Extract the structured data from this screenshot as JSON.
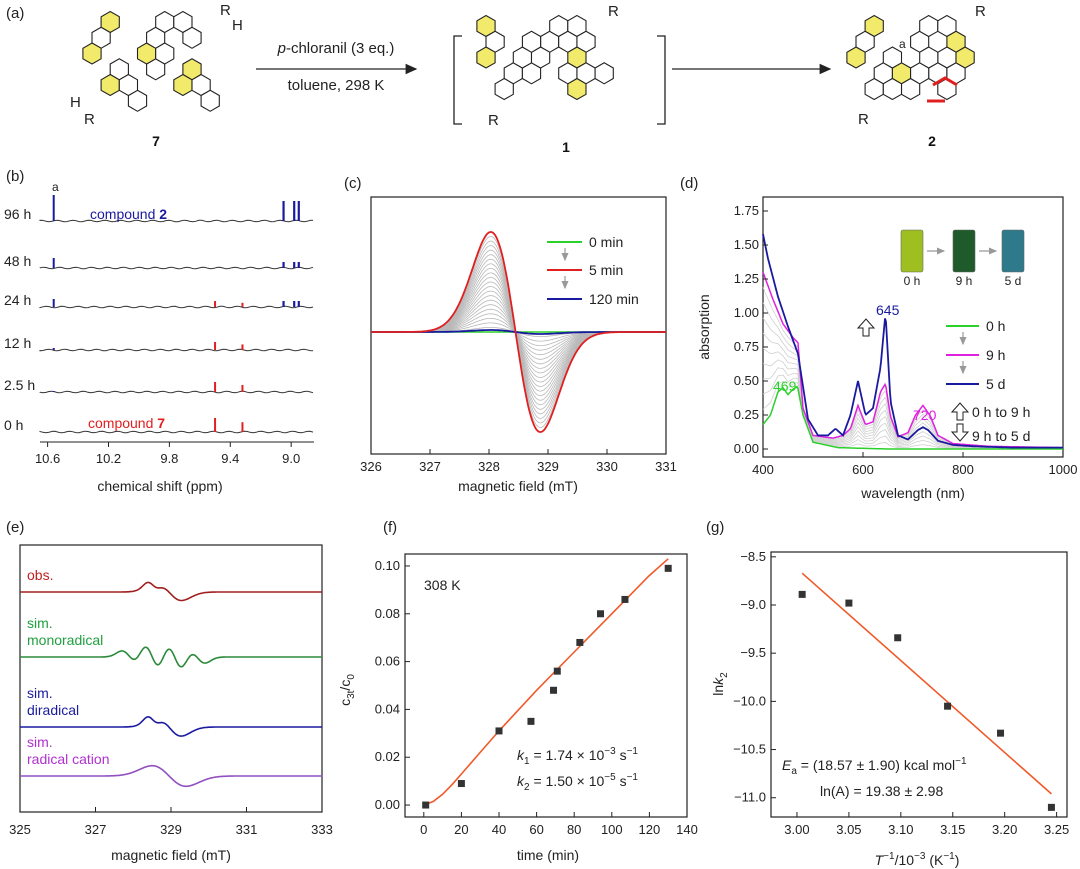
{
  "panel_labels": [
    "(a)",
    "(b)",
    "(c)",
    "(d)",
    "(e)",
    "(f)",
    "(g)"
  ],
  "colors": {
    "green": "#2bd12b",
    "red": "#e02020",
    "blue": "#1a1aa0",
    "magenta": "#e020e0",
    "orange": "#f05a28",
    "yellow": "#f2ea6a",
    "dark": "#333333",
    "gray": "#b8b8b8"
  },
  "scheme": {
    "reagent": "p-chloranil (3 eq.)",
    "reagent_italic": "p",
    "reagent_rest": "-chloranil (3 eq.)",
    "conditions": "toluene, 298 K",
    "compound_7": "7",
    "compound_1": "1",
    "compound_2": "2",
    "r": "R",
    "h": "H",
    "site_a": "a"
  },
  "panel_b": {
    "times": [
      "96 h",
      "48 h",
      "24 h",
      "12 h",
      "2.5 h",
      "0 h"
    ],
    "compound_2_text": "compound ",
    "compound_2_num": "2",
    "compound_7_text": "compound ",
    "compound_7_num": "7",
    "peak_label": "a",
    "xlabel": "chemical shift (ppm)",
    "xticks": [
      "10.6",
      "10.2",
      "9.8",
      "9.4",
      "9.0"
    ]
  },
  "chart_data": [
    {
      "type": "line",
      "panel": "c",
      "title": "",
      "xlabel": "magnetic field (mT)",
      "ylabel": "",
      "xlim": [
        326,
        331
      ],
      "xticks": [
        "326",
        "327",
        "328",
        "329",
        "330",
        "331"
      ],
      "legend": [
        "0 min",
        "5 min",
        "120 min"
      ],
      "series": [
        {
          "name": "5 min",
          "peak_x": 328.0,
          "trough_x": 328.9,
          "amplitude": 1.0
        },
        {
          "name": "0 min",
          "amplitude": 0.0
        },
        {
          "name": "120 min",
          "amplitude": 0.02
        }
      ]
    },
    {
      "type": "line",
      "panel": "d",
      "xlabel": "wavelength (nm)",
      "ylabel": "absorption",
      "xlim": [
        400,
        1000
      ],
      "ylim": [
        0,
        1.75
      ],
      "xticks": [
        "400",
        "600",
        "800",
        "1000"
      ],
      "yticks": [
        "0.00",
        "0.25",
        "0.50",
        "0.75",
        "1.00",
        "1.25",
        "1.50",
        "1.75"
      ],
      "peak_labels": [
        "469",
        "645",
        "720"
      ],
      "legend": [
        "0 h",
        "9 h",
        "5 d",
        "0 h to 9 h",
        "9 h to 5 d"
      ],
      "vial_labels": [
        "0 h",
        "9 h",
        "5 d"
      ],
      "series": [
        {
          "name": "5 d",
          "x": [
            400,
            410,
            430,
            450,
            470,
            490,
            510,
            530,
            545,
            560,
            575,
            590,
            605,
            620,
            635,
            645,
            655,
            670,
            690,
            710,
            720,
            730,
            750,
            780,
            820,
            900,
            1000
          ],
          "y": [
            1.58,
            1.4,
            1.12,
            0.9,
            0.7,
            0.22,
            0.1,
            0.1,
            0.15,
            0.1,
            0.25,
            0.5,
            0.25,
            0.3,
            0.6,
            1.0,
            0.35,
            0.1,
            0.07,
            0.14,
            0.16,
            0.14,
            0.06,
            0.03,
            0.02,
            0.01,
            0.01
          ]
        },
        {
          "name": "9 h",
          "x": [
            400,
            420,
            440,
            460,
            470,
            480,
            500,
            540,
            560,
            575,
            590,
            605,
            620,
            635,
            645,
            655,
            670,
            690,
            705,
            720,
            735,
            750,
            780,
            850,
            1000
          ],
          "y": [
            1.3,
            1.1,
            0.92,
            0.82,
            0.78,
            0.3,
            0.1,
            0.08,
            0.1,
            0.15,
            0.32,
            0.18,
            0.2,
            0.42,
            0.48,
            0.24,
            0.09,
            0.12,
            0.25,
            0.32,
            0.24,
            0.1,
            0.04,
            0.02,
            0.01
          ]
        },
        {
          "name": "0 h",
          "x": [
            400,
            415,
            430,
            440,
            450,
            460,
            469,
            480,
            500,
            550,
            650,
            800,
            1000
          ],
          "y": [
            0.18,
            0.25,
            0.42,
            0.45,
            0.4,
            0.44,
            0.46,
            0.25,
            0.05,
            0.01,
            0.0,
            0.0,
            0.0
          ]
        }
      ]
    },
    {
      "type": "line",
      "panel": "e",
      "xlabel": "magnetic field (mT)",
      "xlim": [
        325,
        333
      ],
      "xticks": [
        "325",
        "327",
        "329",
        "331",
        "333"
      ],
      "series": [
        {
          "name": "obs."
        },
        {
          "name": "sim. monoradical"
        },
        {
          "name": "sim. diradical"
        },
        {
          "name": "sim. radical cation"
        }
      ]
    },
    {
      "type": "scatter",
      "panel": "f",
      "annotation": "308 K",
      "xlabel": "time (min)",
      "ylabel": "c3t/c0",
      "xlim": [
        -10,
        140
      ],
      "ylim": [
        -0.005,
        0.105
      ],
      "xticks": [
        "0",
        "20",
        "40",
        "60",
        "80",
        "100",
        "120",
        "140"
      ],
      "yticks": [
        "0.00",
        "0.02",
        "0.04",
        "0.06",
        "0.08",
        "0.10"
      ],
      "x": [
        1,
        20,
        40,
        57,
        69,
        71,
        83,
        94,
        107,
        130
      ],
      "y": [
        0.0,
        0.009,
        0.031,
        0.035,
        0.048,
        0.056,
        0.068,
        0.08,
        0.086,
        0.099
      ],
      "fit": {
        "x": [
          0,
          5,
          10,
          15,
          20,
          30,
          40,
          60,
          80,
          100,
          120,
          130
        ],
        "y": [
          0.0,
          0.0015,
          0.0045,
          0.0085,
          0.013,
          0.022,
          0.031,
          0.048,
          0.064,
          0.08,
          0.096,
          0.103
        ]
      },
      "k1_label": "k",
      "k1_sub": "1",
      "k1_value": " = 1.74 × 10",
      "k1_exp": "−3",
      "k1_unit": " s",
      "k1_unit_exp": "−1",
      "k2_label": "k",
      "k2_sub": "2",
      "k2_value": " = 1.50 × 10",
      "k2_exp": "−5",
      "k2_unit": " s",
      "k2_unit_exp": "−1"
    },
    {
      "type": "scatter",
      "panel": "g",
      "xlabel": "T−1/10−3 (K−1)",
      "ylabel": "lnk2",
      "xlim": [
        2.975,
        3.26
      ],
      "ylim": [
        -11.2,
        -8.45
      ],
      "xticks": [
        "3.00",
        "3.05",
        "3.10",
        "3.15",
        "3.20",
        "3.25"
      ],
      "yticks": [
        "−8.5",
        "−9.0",
        "−9.5",
        "−10.0",
        "−10.5",
        "−11.0"
      ],
      "x": [
        3.005,
        3.05,
        3.097,
        3.145,
        3.196,
        3.245
      ],
      "y": [
        -8.89,
        -8.98,
        -9.34,
        -10.05,
        -10.33,
        -11.1
      ],
      "fit": {
        "x": [
          3.005,
          3.245
        ],
        "y": [
          -8.67,
          -10.96
        ]
      },
      "ea_label": "E",
      "ea_sub": "a",
      "ea_value": " = (18.57 ± 1.90) kcal mol",
      "ea_exp": "−1",
      "lnA_text": "ln(A) = 19.38 ± 2.98"
    }
  ]
}
